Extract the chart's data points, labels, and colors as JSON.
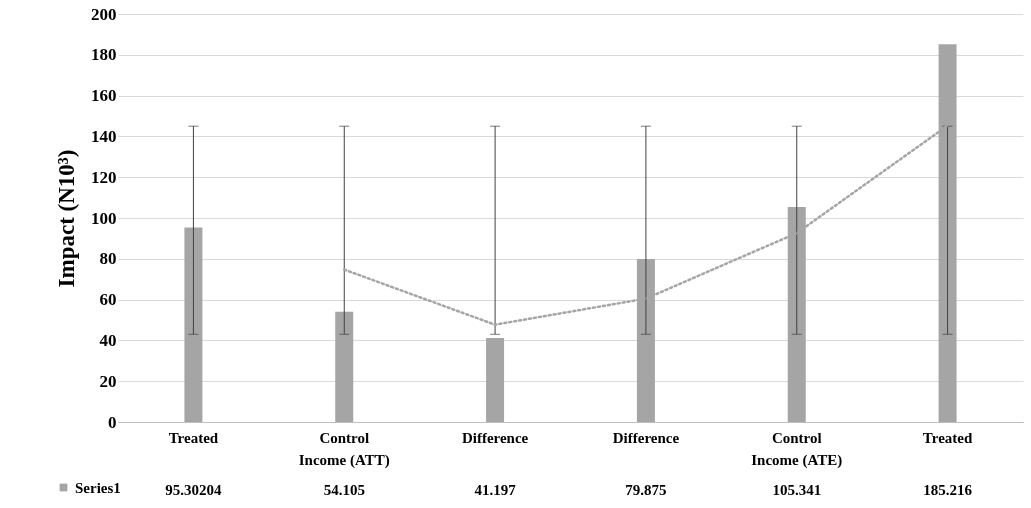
{
  "chart_data": {
    "type": "bar",
    "ylabel": "Impact (N10³)",
    "categories": [
      "Treated",
      "Control",
      "Difference",
      "Difference",
      "Control",
      "Treated"
    ],
    "series": [
      {
        "name": "Series1",
        "color": "#a5a5a5",
        "values": [
          95.30204,
          54.105,
          41.197,
          79.875,
          105.341,
          185.216
        ],
        "errors": [
          [
            43,
            145
          ],
          [
            43,
            145
          ],
          [
            43,
            145
          ],
          [
            43,
            145
          ],
          [
            43,
            145
          ],
          [
            43,
            145
          ]
        ],
        "value_labels": [
          "95.30204",
          "54.105",
          "41.197",
          "79.875",
          "105.341",
          "185.216"
        ]
      },
      {
        "type": "line",
        "color": "#a5a5a5",
        "line_style": "dotted",
        "values": [
          null,
          74.7,
          47.7,
          60.5,
          92.6,
          145.3
        ]
      }
    ],
    "annotations": [
      "Income (ATT)",
      "Income (ATE)"
    ],
    "ylim": [
      0,
      200
    ],
    "yticks": [
      0,
      20,
      40,
      60,
      80,
      100,
      120,
      140,
      160,
      180,
      200
    ],
    "grid": "y",
    "legend": "bottom left"
  }
}
